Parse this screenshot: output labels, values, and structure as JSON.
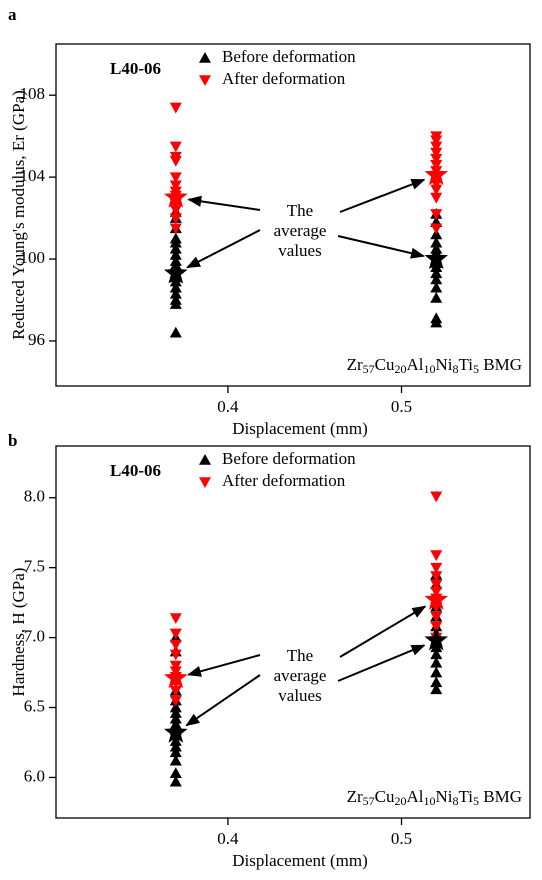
{
  "chart_data": [
    {
      "type": "scatter",
      "panel_label": "a",
      "sample_label": "L40-06",
      "xlabel": "Displacement (mm)",
      "ylabel": "Reduced Young's modulus, Er (GPa)",
      "annotation": [
        "The",
        "average",
        "values"
      ],
      "composition": "Zr57Cu20Al10Ni8Ti5  BMG",
      "xlim": [
        0.301,
        0.574
      ],
      "xticks": [
        0.4,
        0.5
      ],
      "ylim": [
        93.8,
        110.5
      ],
      "yticks": [
        96,
        100,
        104,
        108
      ],
      "legend": "upper-left",
      "series": [
        {
          "name": "Before deformation",
          "color": "#000000",
          "marker": "triangle-up",
          "x": [
            0.37,
            0.37,
            0.37,
            0.37,
            0.37,
            0.37,
            0.37,
            0.37,
            0.37,
            0.37,
            0.37,
            0.37,
            0.37,
            0.37,
            0.37,
            0.37,
            0.37,
            0.37,
            0.52,
            0.52,
            0.52,
            0.52,
            0.52,
            0.52,
            0.52,
            0.52,
            0.52,
            0.52,
            0.52,
            0.52,
            0.52,
            0.52,
            0.52
          ],
          "values": [
            96.4,
            97.8,
            98.0,
            98.3,
            98.6,
            98.9,
            99.1,
            99.3,
            99.5,
            99.7,
            99.9,
            100.2,
            100.5,
            100.8,
            101.0,
            101.5,
            102.0,
            102.3,
            96.9,
            97.1,
            98.1,
            98.6,
            99.0,
            99.3,
            99.6,
            99.8,
            100.0,
            100.3,
            100.5,
            100.8,
            101.2,
            101.8,
            102.2
          ]
        },
        {
          "name": "After deformation",
          "color": "#ff0000",
          "marker": "triangle-down",
          "x": [
            0.37,
            0.37,
            0.37,
            0.37,
            0.37,
            0.37,
            0.37,
            0.37,
            0.37,
            0.37,
            0.37,
            0.37,
            0.37,
            0.52,
            0.52,
            0.52,
            0.52,
            0.52,
            0.52,
            0.52,
            0.52,
            0.52,
            0.52,
            0.52,
            0.52,
            0.52
          ],
          "values": [
            101.5,
            102.0,
            102.4,
            102.7,
            102.9,
            103.1,
            103.3,
            103.6,
            104.0,
            104.8,
            105.0,
            105.5,
            107.4,
            101.5,
            102.2,
            103.0,
            103.4,
            103.7,
            104.0,
            104.3,
            104.6,
            104.9,
            105.2,
            105.5,
            105.8,
            106.0
          ]
        }
      ],
      "averages": {
        "x": [
          0.37,
          0.52,
          0.37,
          0.52
        ],
        "values": [
          99.3,
          100.0,
          103.0,
          104.1
        ],
        "colors": [
          "#000000",
          "#000000",
          "#ff0000",
          "#ff0000"
        ]
      }
    },
    {
      "type": "scatter",
      "panel_label": "b",
      "sample_label": "L40-06",
      "xlabel": "Displacement (mm)",
      "ylabel": "Hardness, H (GPa)",
      "annotation": [
        "The",
        "average",
        "values"
      ],
      "composition": "Zr57Cu20Al10Ni8Ti5  BMG",
      "xlim": [
        0.301,
        0.574
      ],
      "xticks": [
        0.4,
        0.5
      ],
      "ylim": [
        5.71,
        8.37
      ],
      "yticks": [
        {
          "value": 6,
          "label": "6.0"
        },
        6.5,
        {
          "value": 7,
          "label": "7.0"
        },
        7.5,
        {
          "value": 8,
          "label": "8.0"
        }
      ],
      "legend": "upper-left",
      "series": [
        {
          "name": "Before deformation",
          "color": "#000000",
          "marker": "triangle-up",
          "x": [
            0.37,
            0.37,
            0.37,
            0.37,
            0.37,
            0.37,
            0.37,
            0.37,
            0.37,
            0.37,
            0.37,
            0.37,
            0.37,
            0.37,
            0.37,
            0.37,
            0.37,
            0.52,
            0.52,
            0.52,
            0.52,
            0.52,
            0.52,
            0.52,
            0.52,
            0.52,
            0.52,
            0.52,
            0.52,
            0.52,
            0.52
          ],
          "values": [
            5.97,
            6.03,
            6.12,
            6.18,
            6.22,
            6.26,
            6.3,
            6.34,
            6.38,
            6.42,
            6.46,
            6.5,
            6.55,
            6.62,
            6.7,
            6.9,
            7.0,
            6.63,
            6.68,
            6.75,
            6.82,
            6.88,
            6.93,
            6.98,
            7.03,
            7.08,
            7.15,
            7.22,
            7.3,
            7.38,
            7.45
          ]
        },
        {
          "name": "After deformation",
          "color": "#ff0000",
          "marker": "triangle-down",
          "x": [
            0.37,
            0.37,
            0.37,
            0.37,
            0.37,
            0.37,
            0.37,
            0.37,
            0.37,
            0.37,
            0.52,
            0.52,
            0.52,
            0.52,
            0.52,
            0.52,
            0.52,
            0.52,
            0.52,
            0.52,
            0.52
          ],
          "values": [
            6.55,
            6.62,
            6.68,
            6.72,
            6.76,
            6.8,
            6.88,
            6.95,
            7.03,
            7.14,
            7.0,
            7.08,
            7.15,
            7.22,
            7.28,
            7.33,
            7.38,
            7.44,
            7.5,
            7.59,
            8.01
          ]
        }
      ],
      "averages": {
        "x": [
          0.37,
          0.52,
          0.37,
          0.52
        ],
        "values": [
          6.32,
          6.98,
          6.71,
          7.27
        ],
        "colors": [
          "#000000",
          "#000000",
          "#ff0000",
          "#ff0000"
        ]
      }
    }
  ]
}
